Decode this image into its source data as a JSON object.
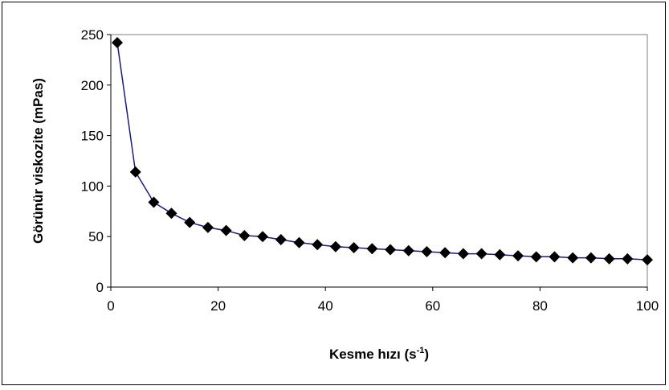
{
  "chart_data": {
    "type": "scatter",
    "xlabel": "Kesme hızı (s",
    "xlabel_superscript": "-1",
    "xlabel_suffix": ")",
    "ylabel": "Görünür viskozite (mPas)",
    "xlim": [
      0,
      100
    ],
    "ylim": [
      0,
      250
    ],
    "x_ticks": [
      0,
      20,
      40,
      60,
      80,
      100
    ],
    "y_ticks": [
      0,
      50,
      100,
      150,
      200,
      250
    ],
    "grid": false,
    "legend": "none",
    "line_color": "#1a1a80",
    "marker": "diamond",
    "marker_color": "#000000",
    "series": [
      {
        "x": [
          1.2,
          4.6,
          8.0,
          11.3,
          14.7,
          18.1,
          21.5,
          24.9,
          28.3,
          31.7,
          35.1,
          38.5,
          41.9,
          45.3,
          48.7,
          52.1,
          55.5,
          58.9,
          62.3,
          65.7,
          69.1,
          72.5,
          75.9,
          79.3,
          82.7,
          86.1,
          89.5,
          92.9,
          96.3,
          100.0
        ],
        "y": [
          242,
          114,
          84,
          73,
          64,
          59,
          56,
          51,
          50,
          47,
          44,
          42,
          40,
          39,
          38,
          37,
          36,
          35,
          34,
          33,
          33,
          32,
          31,
          30,
          30,
          29,
          29,
          28,
          28,
          27
        ]
      }
    ]
  }
}
